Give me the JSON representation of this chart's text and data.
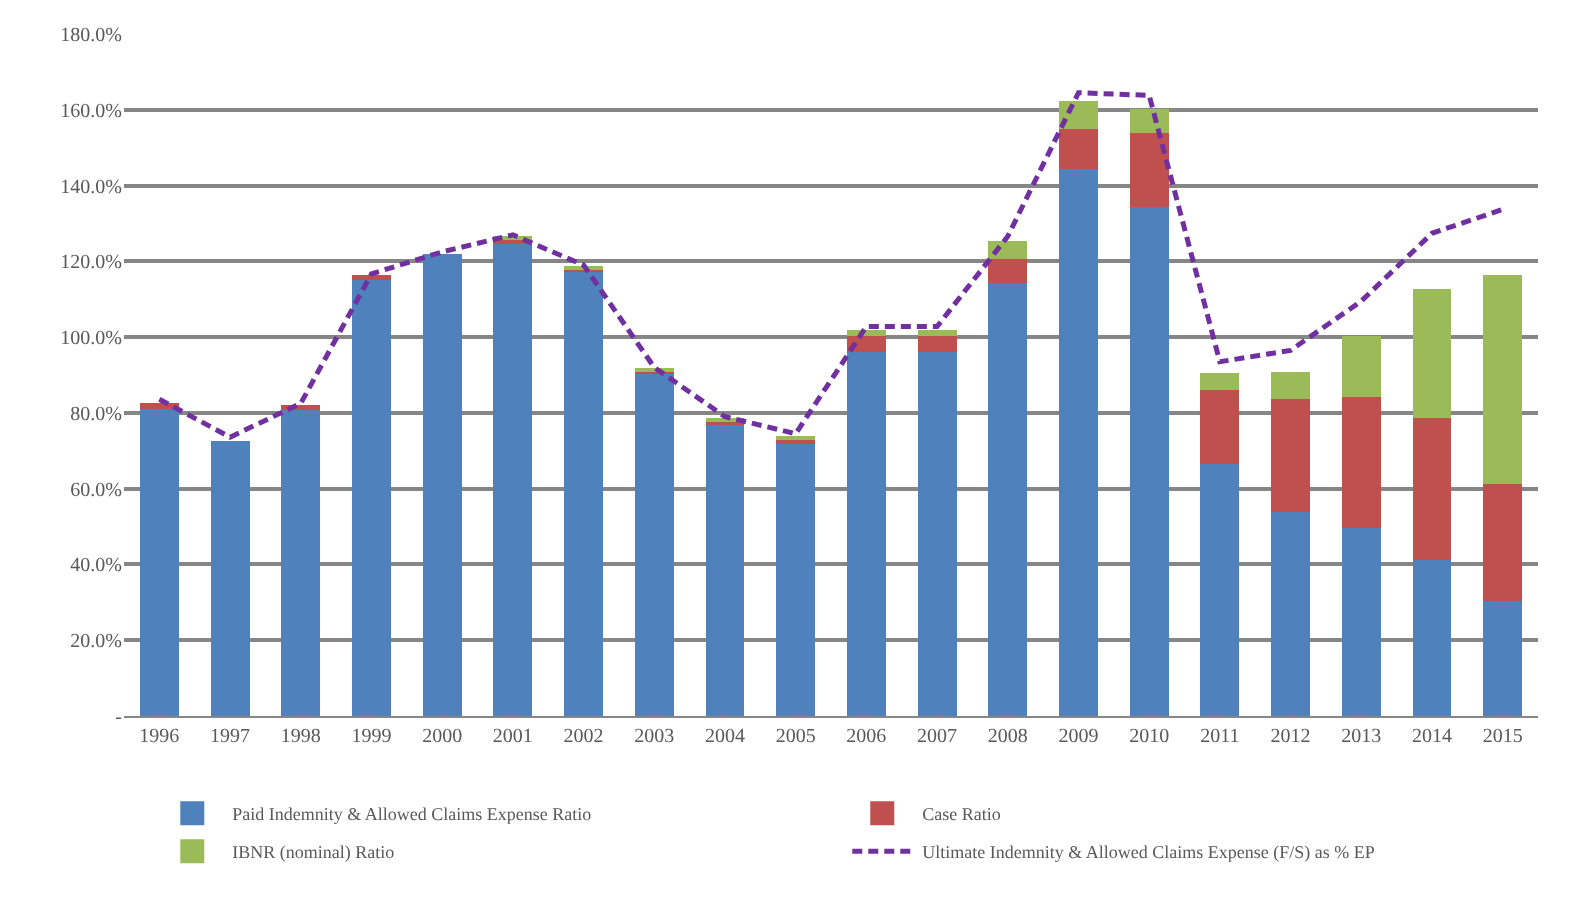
{
  "chart_data": {
    "type": "bar",
    "stacked": true,
    "categories": [
      "1996",
      "1997",
      "1998",
      "1999",
      "2000",
      "2001",
      "2002",
      "2003",
      "2004",
      "2005",
      "2006",
      "2007",
      "2008",
      "2009",
      "2010",
      "2011",
      "2012",
      "2013",
      "2014",
      "2015"
    ],
    "series": [
      {
        "name": "Paid Indemnity & Allowed Claims Expense Ratio",
        "color": "#4f81bd",
        "values": [
          80.9,
          72.6,
          81.2,
          115,
          121.9,
          125,
          117.4,
          90.6,
          76.9,
          72.2,
          96.1,
          96,
          114.3,
          144.4,
          134.4,
          66.4,
          53.9,
          49.6,
          41.1,
          30.4
        ]
      },
      {
        "name": "Case Ratio",
        "color": "#c0504d",
        "values": [
          1.7,
          0,
          0.8,
          1.3,
          0,
          1,
          0.8,
          0.7,
          1.1,
          1,
          4.1,
          4.3,
          6.4,
          10.4,
          19.6,
          19.6,
          29.7,
          34.7,
          37.5,
          30.9
        ]
      },
      {
        "name": "IBNR (nominal) Ratio",
        "color": "#9bbb59",
        "values": [
          0,
          0,
          0,
          0,
          0,
          0.8,
          0.5,
          0.5,
          0.4,
          0.8,
          1.6,
          1.5,
          4.7,
          7.4,
          6.2,
          4.6,
          7.2,
          15.9,
          34.2,
          55.2
        ]
      },
      {
        "name": "Ultimate Indemnity & Allowed Claims Expense (F/S) as % EP",
        "color": "#7030a0",
        "type": "line",
        "line_style": "dashed",
        "values": [
          83.6,
          73.6,
          82.5,
          116.7,
          122.5,
          127,
          119,
          92,
          79,
          74.5,
          102.8,
          102.8,
          126.6,
          164.5,
          163.8,
          93.5,
          96.5,
          109.5,
          127.4,
          133.7
        ]
      }
    ],
    "ylim": [
      0,
      180
    ],
    "yticks": [
      {
        "value": 0,
        "label": "-"
      },
      {
        "value": 20,
        "label": "20.0%"
      },
      {
        "value": 40,
        "label": "40.0%"
      },
      {
        "value": 60,
        "label": "60.0%"
      },
      {
        "value": 80,
        "label": "80.0%"
      },
      {
        "value": 100,
        "label": "100.0%"
      },
      {
        "value": 120,
        "label": "120.0%"
      },
      {
        "value": 140,
        "label": "140.0%"
      },
      {
        "value": 160,
        "label": "160.0%"
      },
      {
        "value": 180,
        "label": "180.0%"
      }
    ],
    "grid": "y",
    "legend": "bottom",
    "marker": "none"
  }
}
